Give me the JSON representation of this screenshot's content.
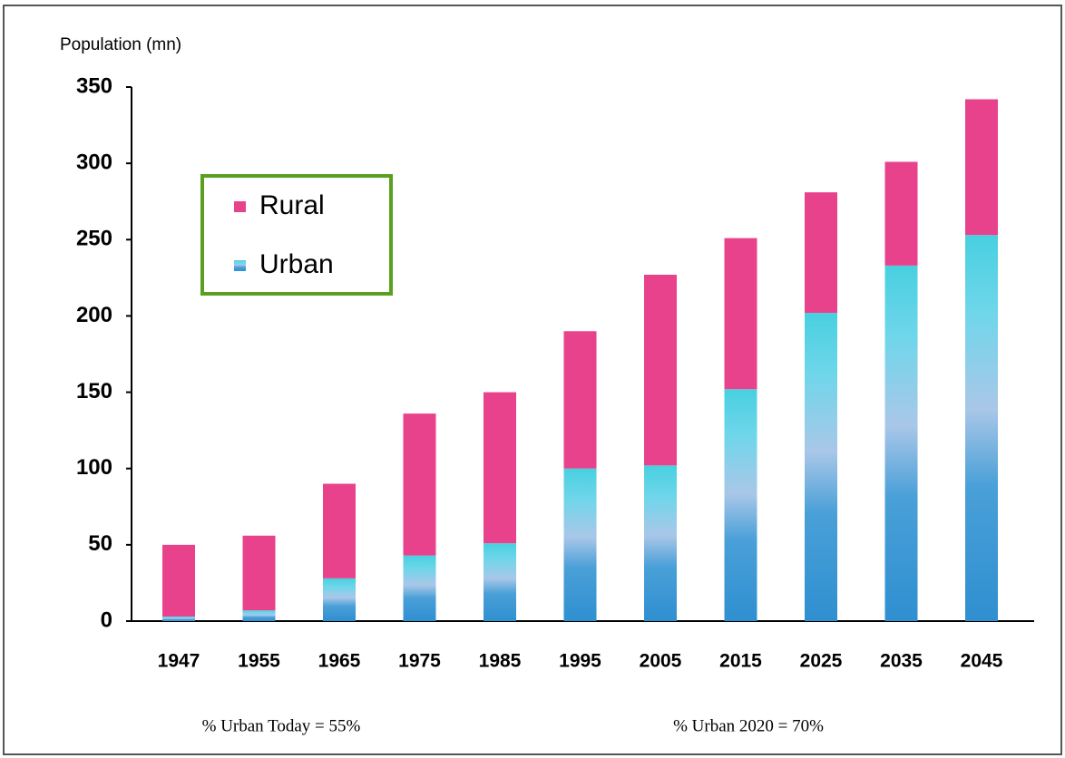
{
  "chart_data": {
    "type": "stacked_bar",
    "y_label": "Population (mn)",
    "categories": [
      "1947",
      "1955",
      "1965",
      "1975",
      "1985",
      "1995",
      "2005",
      "2015",
      "2025",
      "2035",
      "2045"
    ],
    "series": [
      {
        "name": "Urban",
        "color": "#3a9ad6",
        "values": [
          3,
          7,
          28,
          43,
          51,
          100,
          102,
          152,
          202,
          233,
          253
        ]
      },
      {
        "name": "Rural",
        "color": "#e8428c",
        "values": [
          47,
          49,
          62,
          93,
          99,
          90,
          125,
          99,
          79,
          68,
          89
        ]
      }
    ],
    "legend_order": [
      "Rural",
      "Urban"
    ],
    "ylim": [
      0,
      350
    ],
    "yticks": [
      0,
      50,
      100,
      150,
      200,
      250,
      300,
      350
    ],
    "annotations": [
      "% Urban Today = 55%",
      "% Urban 2020 = 70%"
    ]
  }
}
